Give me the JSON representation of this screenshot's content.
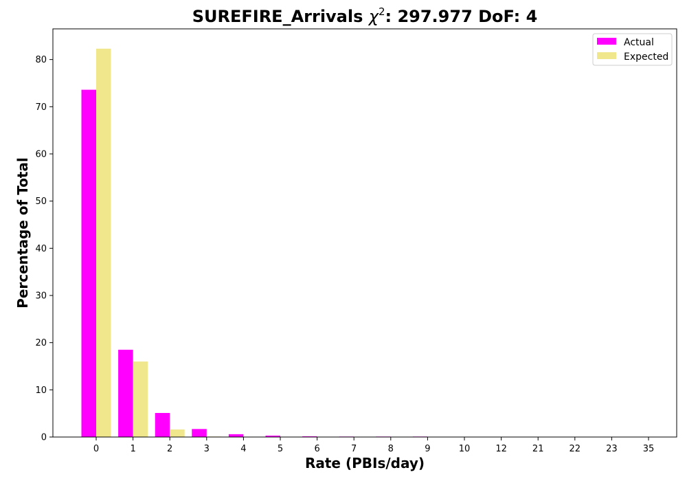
{
  "chart_data": {
    "type": "bar",
    "title_main": "SUREFIRE_Arrivals ",
    "title_chi": "χ",
    "title_sup": "2",
    "title_rest": ": 297.977 DoF: 4",
    "xlabel": "Rate (PBIs/day)",
    "ylabel": "Percentage of Total",
    "categories": [
      "0",
      "1",
      "2",
      "3",
      "4",
      "5",
      "6",
      "7",
      "8",
      "9",
      "10",
      "12",
      "21",
      "22",
      "23",
      "35"
    ],
    "ylim": [
      0,
      86.5
    ],
    "yticks": [
      0,
      10,
      20,
      30,
      40,
      50,
      60,
      70,
      80
    ],
    "series": [
      {
        "name": "Actual",
        "color": "#ff00ff",
        "values": [
          73.6,
          18.5,
          5.1,
          1.7,
          0.6,
          0.3,
          0.15,
          0.1,
          0.1,
          0.1,
          0.05,
          0.05,
          0.05,
          0.05,
          0.05,
          0.05
        ]
      },
      {
        "name": "Expected",
        "color": "#f0e68c",
        "values": [
          82.3,
          16.0,
          1.6,
          0.1,
          0,
          0,
          0,
          0,
          0,
          0,
          0,
          0,
          0,
          0,
          0,
          0
        ]
      }
    ],
    "legend_position": "top-right",
    "grid": false
  }
}
